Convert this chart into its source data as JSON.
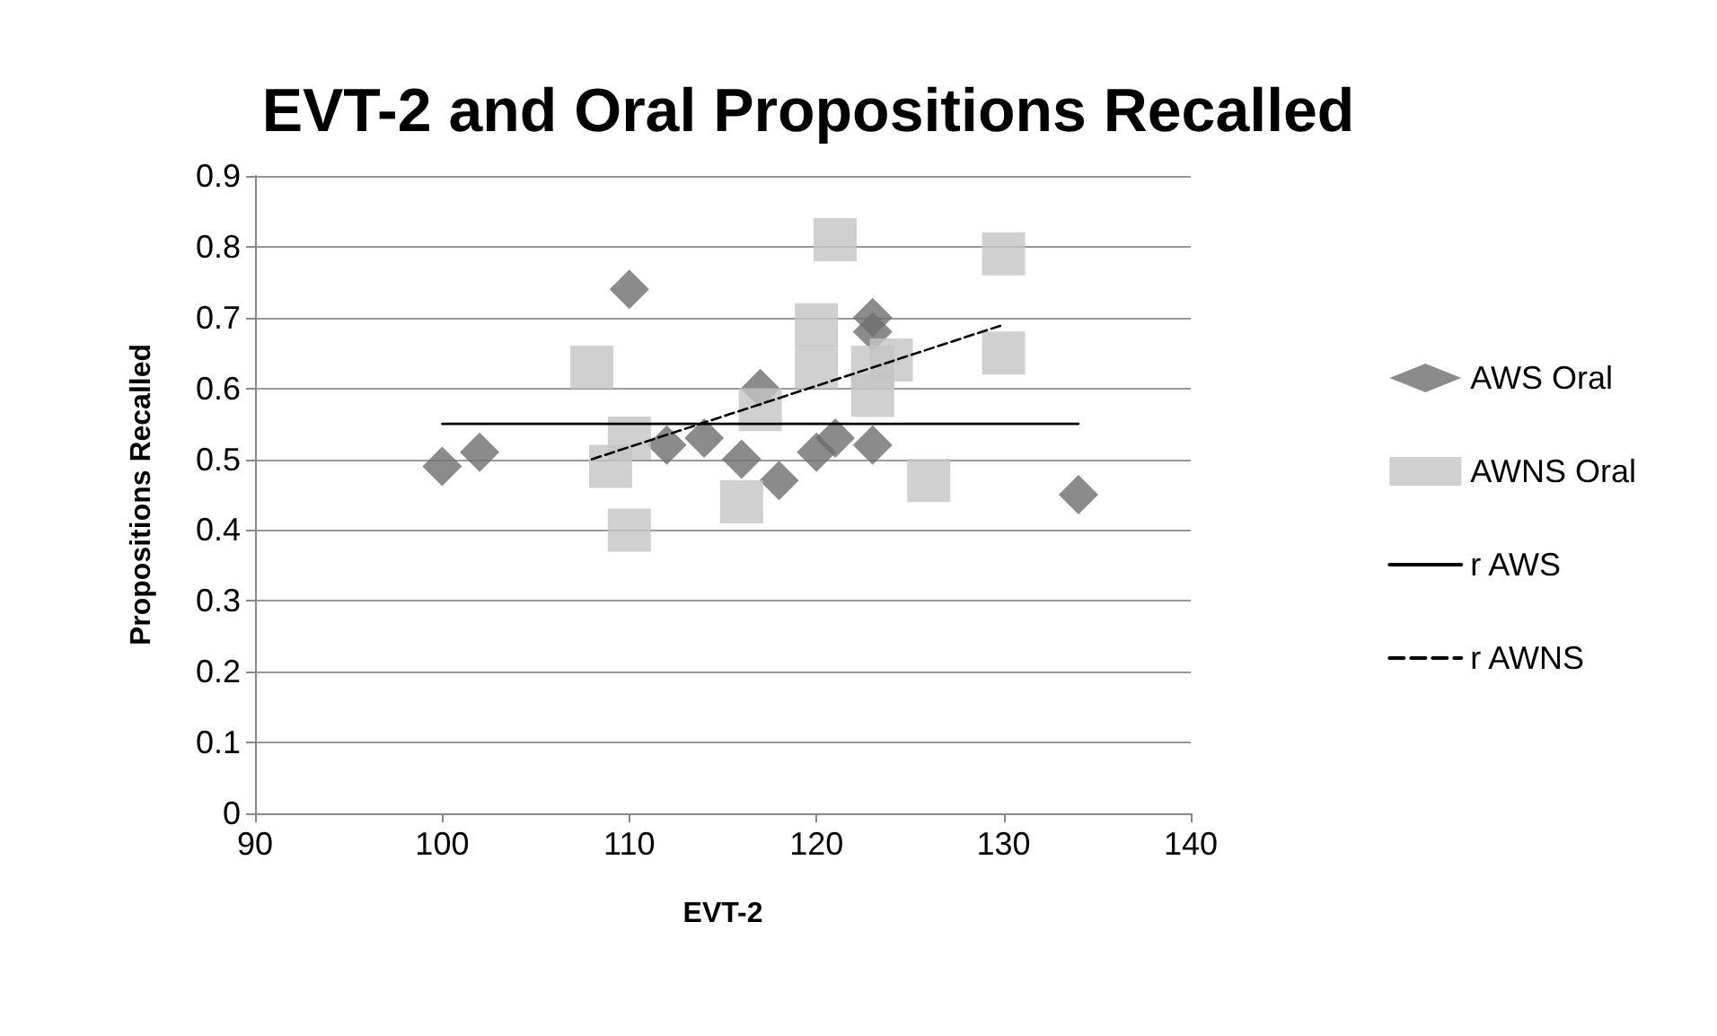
{
  "chart_data": {
    "type": "scatter",
    "title": "EVT-2 and Oral Propositions Recalled",
    "xlabel": "EVT-2",
    "ylabel": "Propositions Recalled",
    "xlim": [
      90,
      140
    ],
    "xticks": [
      90,
      100,
      110,
      120,
      130,
      140
    ],
    "ylim": [
      0,
      0.9
    ],
    "yticks": [
      0,
      0.1,
      0.2,
      0.3,
      0.4,
      0.5,
      0.6,
      0.7,
      0.8,
      0.9
    ],
    "grid": "y",
    "legend": "right",
    "series": [
      {
        "name": "AWS Oral",
        "marker": "diamond",
        "color": "#6e6e6e",
        "x": [
          100,
          102,
          110,
          112,
          114,
          116,
          117,
          118,
          120,
          121,
          123,
          123,
          123,
          134
        ],
        "values": [
          0.49,
          0.51,
          0.74,
          0.52,
          0.53,
          0.5,
          0.6,
          0.47,
          0.51,
          0.53,
          0.7,
          0.68,
          0.52,
          0.45
        ]
      },
      {
        "name": "AWNS Oral",
        "marker": "square",
        "color": "#c4c4c4",
        "x": [
          108,
          109,
          110,
          110,
          116,
          117,
          120,
          120,
          121,
          123,
          123,
          124,
          126,
          130,
          130
        ],
        "values": [
          0.63,
          0.49,
          0.53,
          0.4,
          0.44,
          0.57,
          0.69,
          0.63,
          0.81,
          0.63,
          0.59,
          0.64,
          0.47,
          0.79,
          0.65
        ]
      },
      {
        "name": "r AWS",
        "type": "line",
        "marker": "none",
        "line_style": "solid",
        "color": "#000000",
        "x": [
          100,
          134
        ],
        "values": [
          0.55,
          0.55
        ]
      },
      {
        "name": "r AWNS",
        "type": "line",
        "marker": "none",
        "line_style": "dashed",
        "color": "#000000",
        "x": [
          108,
          130
        ],
        "values": [
          0.5,
          0.69
        ]
      }
    ]
  }
}
